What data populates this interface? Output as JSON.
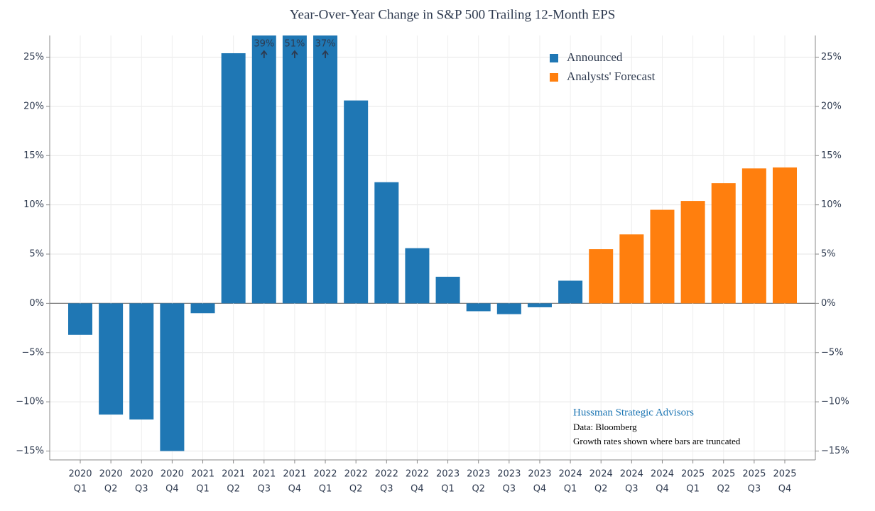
{
  "chart_data": {
    "type": "bar",
    "title": "Year-Over-Year Change in S&P 500 Trailing 12-Month EPS",
    "categories": [
      [
        "2020",
        "Q1"
      ],
      [
        "2020",
        "Q2"
      ],
      [
        "2020",
        "Q3"
      ],
      [
        "2020",
        "Q4"
      ],
      [
        "2021",
        "Q1"
      ],
      [
        "2021",
        "Q2"
      ],
      [
        "2021",
        "Q3"
      ],
      [
        "2021",
        "Q4"
      ],
      [
        "2022",
        "Q1"
      ],
      [
        "2022",
        "Q2"
      ],
      [
        "2022",
        "Q3"
      ],
      [
        "2022",
        "Q4"
      ],
      [
        "2023",
        "Q1"
      ],
      [
        "2023",
        "Q2"
      ],
      [
        "2023",
        "Q3"
      ],
      [
        "2023",
        "Q4"
      ],
      [
        "2024",
        "Q1"
      ],
      [
        "2024",
        "Q2"
      ],
      [
        "2024",
        "Q3"
      ],
      [
        "2024",
        "Q4"
      ],
      [
        "2025",
        "Q1"
      ],
      [
        "2025",
        "Q2"
      ],
      [
        "2025",
        "Q3"
      ],
      [
        "2025",
        "Q4"
      ]
    ],
    "series": [
      {
        "name": "Announced",
        "color": "#1f77b4",
        "values": [
          -3.2,
          -11.3,
          -11.8,
          -15.0,
          -1.0,
          25.4,
          39,
          51,
          37,
          20.6,
          12.3,
          5.6,
          2.7,
          -0.8,
          -1.1,
          -0.4,
          2.3,
          null,
          null,
          null,
          null,
          null,
          null,
          null
        ],
        "value_labels": [
          null,
          null,
          null,
          null,
          null,
          null,
          "39%",
          "51%",
          "37%",
          null,
          null,
          null,
          null,
          null,
          null,
          null,
          null,
          null,
          null,
          null,
          null,
          null,
          null,
          null
        ]
      },
      {
        "name": "Analysts' Forecast",
        "color": "#ff7f0e",
        "values": [
          null,
          null,
          null,
          null,
          null,
          null,
          null,
          null,
          null,
          null,
          null,
          null,
          null,
          null,
          null,
          null,
          null,
          5.5,
          7.0,
          9.5,
          10.4,
          12.2,
          13.7,
          13.8
        ]
      }
    ],
    "ylim": [
      -15.9,
      27.2
    ],
    "yticks": [
      {
        "value": -15,
        "label": "−15%"
      },
      {
        "value": -10,
        "label": "−10%"
      },
      {
        "value": -5,
        "label": "−5%"
      },
      {
        "value": 0,
        "label": "0%"
      },
      {
        "value": 5,
        "label": "5%"
      },
      {
        "value": 10,
        "label": "10%"
      },
      {
        "value": 15,
        "label": "15%"
      },
      {
        "value": 20,
        "label": "20%"
      },
      {
        "value": 25,
        "label": "25%"
      }
    ],
    "grid": true,
    "legend": "top-right",
    "annotations": [
      "Hussman Strategic Advisors",
      "Data: Bloomberg",
      "Growth rates shown where bars are truncated"
    ]
  }
}
